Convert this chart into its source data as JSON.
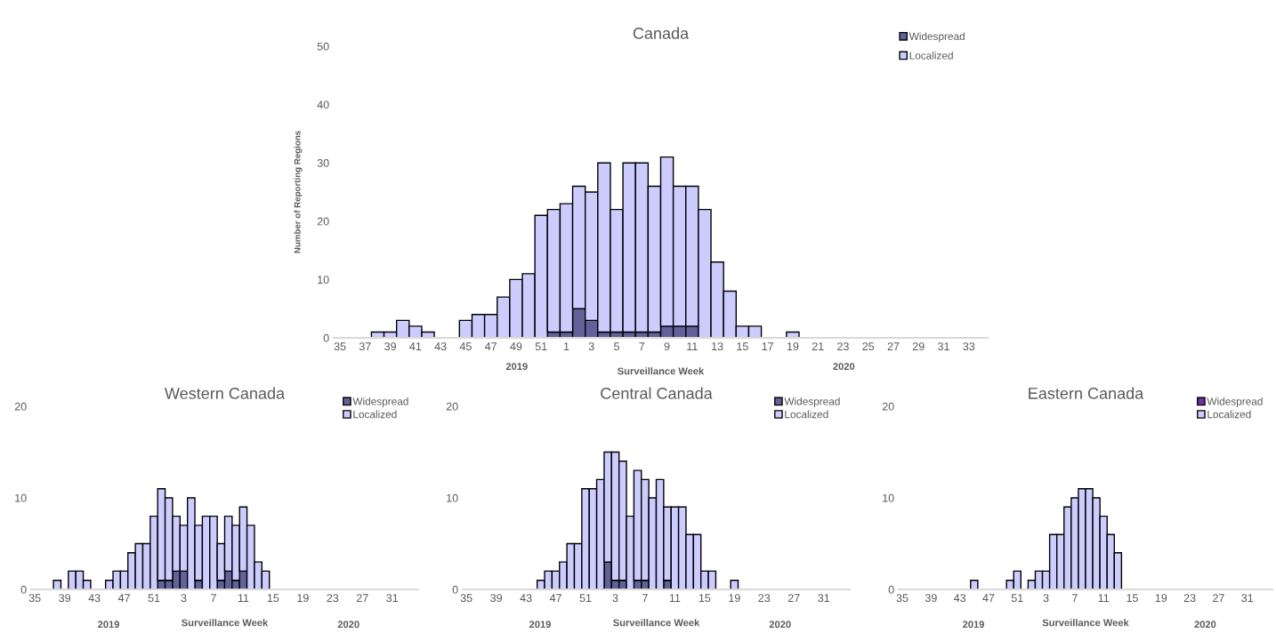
{
  "chart_data": [
    {
      "type": "bar",
      "stacked": true,
      "title": "Canada",
      "xlabel": "Surveillance Week",
      "ylabel": "Number of Reporting Regions",
      "annotations": [
        "2019",
        "2020"
      ],
      "categories": [
        "35",
        null,
        "37",
        null,
        "39",
        null,
        "41",
        null,
        "43",
        null,
        "45",
        null,
        "47",
        null,
        "49",
        null,
        "51",
        null,
        "1",
        null,
        "3",
        null,
        "5",
        null,
        "7",
        null,
        "9",
        null,
        "11",
        null,
        "13",
        null,
        "15",
        null,
        "17",
        null,
        "19",
        null,
        "21",
        null,
        "23",
        null,
        "25",
        null,
        "27",
        null,
        "29",
        null,
        "31",
        null,
        "33",
        null
      ],
      "ylim": [
        0,
        50
      ],
      "yticks": [
        0,
        10,
        20,
        30,
        40,
        50
      ],
      "grid": false,
      "legend": "top right",
      "series": [
        {
          "name": "Widespread",
          "color": "#62629a",
          "values": [
            0,
            0,
            0,
            0,
            0,
            0,
            0,
            0,
            0,
            0,
            0,
            0,
            0,
            0,
            0,
            0,
            0,
            1,
            1,
            5,
            3,
            1,
            1,
            1,
            1,
            1,
            2,
            2,
            2,
            0,
            0,
            0,
            0,
            0,
            0,
            0,
            0,
            0,
            0,
            0,
            0,
            0,
            0,
            0,
            0,
            0,
            0,
            0,
            0,
            0,
            0,
            0
          ]
        },
        {
          "name": "Localized",
          "color": "#ccccff",
          "values": [
            0,
            0,
            0,
            1,
            1,
            3,
            2,
            1,
            0,
            0,
            3,
            4,
            4,
            7,
            10,
            11,
            21,
            21,
            22,
            21,
            22,
            29,
            21,
            29,
            29,
            25,
            29,
            24,
            24,
            22,
            13,
            8,
            2,
            2,
            0,
            0,
            1,
            0,
            0,
            0,
            0,
            0,
            0,
            0,
            0,
            0,
            0,
            0,
            0,
            0,
            0,
            0
          ]
        }
      ]
    },
    {
      "type": "bar",
      "stacked": true,
      "title": "Western Canada",
      "xlabel": "Surveillance Week",
      "annotations": [
        "2019",
        "2020"
      ],
      "categories": [
        "35",
        null,
        null,
        null,
        "39",
        null,
        null,
        null,
        "43",
        null,
        null,
        null,
        "47",
        null,
        null,
        null,
        "51",
        null,
        null,
        null,
        "3",
        null,
        null,
        null,
        "7",
        null,
        null,
        null,
        "11",
        null,
        null,
        null,
        "15",
        null,
        null,
        null,
        "19",
        null,
        null,
        null,
        "23",
        null,
        null,
        null,
        "27",
        null,
        null,
        null,
        "31",
        null,
        null,
        null
      ],
      "ylim": [
        0,
        20
      ],
      "yticks": [
        0,
        10,
        20
      ],
      "grid": false,
      "legend": "top right",
      "series": [
        {
          "name": "Widespread",
          "color": "#62629a",
          "values": [
            0,
            0,
            0,
            0,
            0,
            0,
            0,
            0,
            0,
            0,
            0,
            0,
            0,
            0,
            0,
            0,
            0,
            1,
            1,
            2,
            2,
            0,
            1,
            0,
            0,
            1,
            2,
            1,
            2,
            0,
            0,
            0,
            0,
            0,
            0,
            0,
            0,
            0,
            0,
            0,
            0,
            0,
            0,
            0,
            0,
            0,
            0,
            0,
            0,
            0,
            0,
            0
          ]
        },
        {
          "name": "Localized",
          "color": "#ccccff",
          "values": [
            0,
            0,
            0,
            1,
            0,
            2,
            2,
            1,
            0,
            0,
            1,
            2,
            2,
            4,
            5,
            5,
            8,
            10,
            9,
            6,
            5,
            10,
            6,
            8,
            8,
            4,
            6,
            6,
            7,
            7,
            3,
            2,
            0,
            0,
            0,
            0,
            0,
            0,
            0,
            0,
            0,
            0,
            0,
            0,
            0,
            0,
            0,
            0,
            0,
            0,
            0,
            0
          ]
        }
      ]
    },
    {
      "type": "bar",
      "stacked": true,
      "title": "Central Canada",
      "xlabel": "Surveillance Week",
      "annotations": [
        "2019",
        "2020"
      ],
      "categories": [
        "35",
        null,
        null,
        null,
        "39",
        null,
        null,
        null,
        "43",
        null,
        null,
        null,
        "47",
        null,
        null,
        null,
        "51",
        null,
        null,
        null,
        "3",
        null,
        null,
        null,
        "7",
        null,
        null,
        null,
        "11",
        null,
        null,
        null,
        "15",
        null,
        null,
        null,
        "19",
        null,
        null,
        null,
        "23",
        null,
        null,
        null,
        "27",
        null,
        null,
        null,
        "31",
        null,
        null,
        null
      ],
      "ylim": [
        0,
        20
      ],
      "yticks": [
        0,
        10,
        20
      ],
      "grid": false,
      "legend": "top right",
      "series": [
        {
          "name": "Widespread",
          "color": "#62629a",
          "values": [
            0,
            0,
            0,
            0,
            0,
            0,
            0,
            0,
            0,
            0,
            0,
            0,
            0,
            0,
            0,
            0,
            0,
            0,
            0,
            3,
            1,
            1,
            0,
            1,
            1,
            0,
            0,
            1,
            0,
            0,
            0,
            0,
            0,
            0,
            0,
            0,
            0,
            0,
            0,
            0,
            0,
            0,
            0,
            0,
            0,
            0,
            0,
            0,
            0,
            0,
            0,
            0
          ]
        },
        {
          "name": "Localized",
          "color": "#ccccff",
          "values": [
            0,
            0,
            0,
            0,
            0,
            0,
            0,
            0,
            0,
            0,
            1,
            2,
            2,
            3,
            5,
            5,
            11,
            11,
            12,
            12,
            14,
            13,
            8,
            12,
            11,
            10,
            12,
            8,
            9,
            9,
            6,
            6,
            2,
            2,
            0,
            0,
            1,
            0,
            0,
            0,
            0,
            0,
            0,
            0,
            0,
            0,
            0,
            0,
            0,
            0,
            0,
            0
          ]
        }
      ]
    },
    {
      "type": "bar",
      "stacked": true,
      "title": "Eastern Canada",
      "xlabel": "Surveillance Week",
      "annotations": [
        "2019",
        "2020"
      ],
      "categories": [
        "35",
        null,
        null,
        null,
        "39",
        null,
        null,
        null,
        "43",
        null,
        null,
        null,
        "47",
        null,
        null,
        null,
        "51",
        null,
        null,
        null,
        "3",
        null,
        null,
        null,
        "7",
        null,
        null,
        null,
        "11",
        null,
        null,
        null,
        "15",
        null,
        null,
        null,
        "19",
        null,
        null,
        null,
        "23",
        null,
        null,
        null,
        "27",
        null,
        null,
        null,
        "31",
        null,
        null,
        null
      ],
      "ylim": [
        0,
        20
      ],
      "yticks": [
        0,
        10,
        20
      ],
      "grid": false,
      "legend": "top right",
      "series": [
        {
          "name": "Widespread",
          "color": "#7030a0",
          "values": [
            0,
            0,
            0,
            0,
            0,
            0,
            0,
            0,
            0,
            0,
            0,
            0,
            0,
            0,
            0,
            0,
            0,
            0,
            0,
            0,
            0,
            0,
            0,
            0,
            0,
            0,
            0,
            0,
            0,
            0,
            0,
            0,
            0,
            0,
            0,
            0,
            0,
            0,
            0,
            0,
            0,
            0,
            0,
            0,
            0,
            0,
            0,
            0,
            0,
            0,
            0,
            0
          ]
        },
        {
          "name": "Localized",
          "color": "#ccccff",
          "values": [
            0,
            0,
            0,
            0,
            0,
            0,
            0,
            0,
            0,
            0,
            1,
            0,
            0,
            0,
            0,
            1,
            2,
            0,
            1,
            2,
            2,
            6,
            6,
            9,
            10,
            11,
            11,
            10,
            8,
            6,
            4,
            0,
            0,
            0,
            0,
            0,
            0,
            0,
            0,
            0,
            0,
            0,
            0,
            0,
            0,
            0,
            0,
            0,
            0,
            0,
            0,
            0
          ]
        }
      ]
    }
  ]
}
